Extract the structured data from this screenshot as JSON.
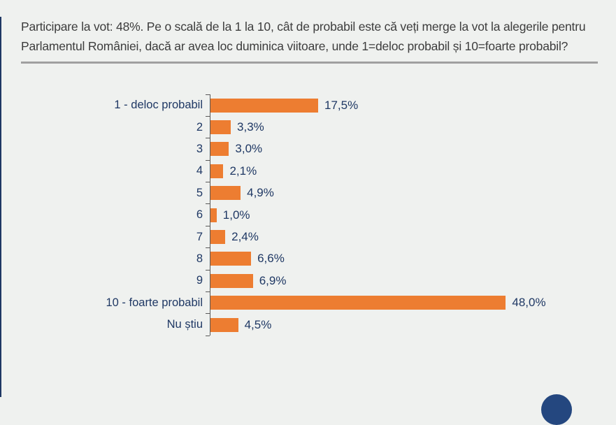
{
  "page": {
    "background_color": "#eff1ef",
    "accent_edge_color": "#1f3864"
  },
  "header": {
    "title": "Participare la vot: 48%. Pe o scală de la 1 la 10, cât de probabil este că veți merge la vot la alegerile pentru Parlamentul României, dacă ar avea loc duminica viitoare, unde 1=deloc probabil și 10=foarte probabil?"
  },
  "chart_data": {
    "type": "bar",
    "orientation": "horizontal",
    "title": "",
    "xlabel": "",
    "ylabel": "",
    "categories": [
      "1 - deloc probabil",
      "2",
      "3",
      "4",
      "5",
      "6",
      "7",
      "8",
      "9",
      "10 - foarte probabil",
      "Nu știu"
    ],
    "values": [
      17.5,
      3.3,
      3.0,
      2.1,
      4.9,
      1.0,
      2.4,
      6.6,
      6.9,
      48.0,
      4.5
    ],
    "value_labels": [
      "17,5%",
      "3,3%",
      "3,0%",
      "2,1%",
      "4,9%",
      "1,0%",
      "2,4%",
      "6,6%",
      "6,9%",
      "48,0%",
      "4,5%"
    ],
    "xlim": [
      0,
      52
    ],
    "grid": false,
    "legend": false,
    "bar_color": "#ed7d31",
    "text_color": "#1f3864",
    "axis_color": "#595959"
  },
  "footer": {
    "partial_logo_color": "#24477f"
  }
}
